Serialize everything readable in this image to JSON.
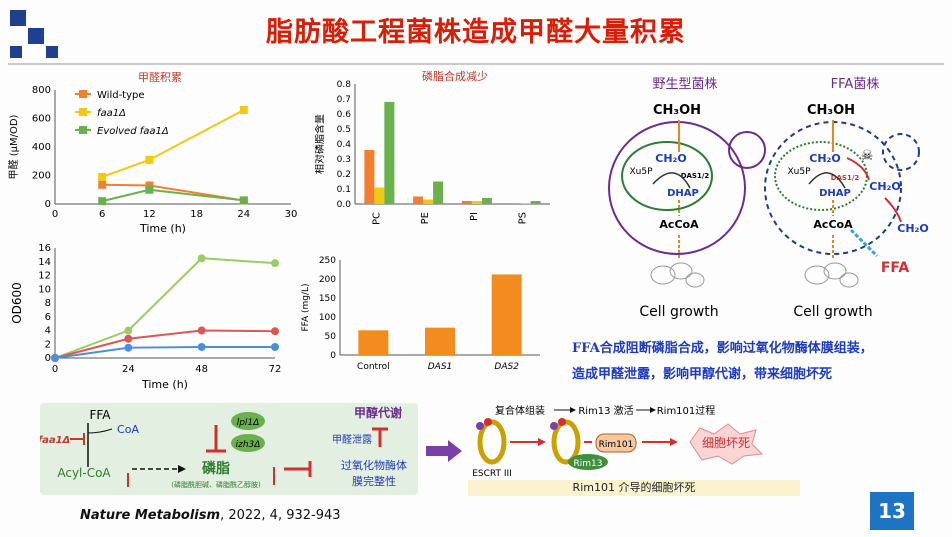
{
  "title": "脂肪酸工程菌株造成甲醛大量积累",
  "chart_formaldehyde": {
    "title": "甲醛积累",
    "type": "line",
    "ylabel": "甲醛 (μM/OD)",
    "xlabel": "Time (h)",
    "xlim": [
      0,
      30
    ],
    "ylim": [
      0,
      800
    ],
    "xticks": [
      "0",
      "6",
      "12",
      "18",
      "24",
      "30"
    ],
    "yticks": [
      "0",
      "200",
      "400",
      "600",
      "800"
    ],
    "series": [
      {
        "name": "Wild-type",
        "color": "#f08030",
        "x": [
          6,
          12,
          24
        ],
        "y": [
          135,
          130,
          25
        ]
      },
      {
        "name": "faa1Δ",
        "color": "#f2c811",
        "x": [
          6,
          12,
          24
        ],
        "y": [
          190,
          310,
          660
        ]
      },
      {
        "name": "Evolved faa1Δ",
        "color": "#6ab04c",
        "x": [
          6,
          12,
          24
        ],
        "y": [
          20,
          100,
          25
        ]
      }
    ]
  },
  "chart_phospholipid": {
    "title": "磷脂合成减少",
    "type": "bar",
    "ylabel": "相对磷脂含量",
    "categories": [
      "PC",
      "PE",
      "PI",
      "PS"
    ],
    "ylim": [
      0,
      0.8
    ],
    "yticks": [
      "0.0",
      "0.1",
      "0.2",
      "0.3",
      "0.4",
      "0.5",
      "0.6",
      "0.7",
      "0.8"
    ],
    "series": [
      {
        "name": "Wild-type",
        "color": "#f08030",
        "values": [
          0.36,
          0.05,
          0.02,
          0.005
        ]
      },
      {
        "name": "faa1Δ",
        "color": "#f2c811",
        "values": [
          0.11,
          0.03,
          0.02,
          0.005
        ]
      },
      {
        "name": "Evolved faa1Δ",
        "color": "#6ab04c",
        "values": [
          0.68,
          0.15,
          0.04,
          0.02
        ]
      }
    ]
  },
  "chart_od": {
    "type": "line",
    "ylabel": "OD600",
    "xlabel": "Time (h)",
    "xlim": [
      0,
      72
    ],
    "ylim": [
      0,
      16
    ],
    "xticks": [
      "0",
      "24",
      "48",
      "72"
    ],
    "yticks": [
      "0",
      "2",
      "4",
      "6",
      "8",
      "10",
      "12",
      "14",
      "16"
    ],
    "series": [
      {
        "name": "Wild-type",
        "color": "#9ccc65",
        "x": [
          0,
          24,
          48,
          72
        ],
        "y": [
          0,
          4,
          14.5,
          13.8
        ]
      },
      {
        "name": "faa1Δ",
        "color": "#e05555",
        "x": [
          0,
          24,
          48,
          72
        ],
        "y": [
          0,
          2.8,
          4,
          3.9
        ]
      },
      {
        "name": "Evolved faa1Δ",
        "color": "#4a90d9",
        "x": [
          0,
          24,
          48,
          72
        ],
        "y": [
          0,
          1.5,
          1.6,
          1.6
        ]
      }
    ]
  },
  "chart_ffa": {
    "type": "bar",
    "ylabel": "FFA (mg/L)",
    "categories": [
      "Control",
      "DAS1",
      "DAS2"
    ],
    "values": [
      65,
      72,
      212
    ],
    "color": "#f28c1e",
    "ylim": [
      0,
      250
    ],
    "yticks": [
      "0",
      "50",
      "100",
      "150",
      "200",
      "250"
    ]
  },
  "diagram": {
    "wt_title": "野生型菌株",
    "ffa_title": "FFA菌株",
    "methanol": "CH₃OH",
    "ch2o": "CH₂O",
    "xu5p": "Xu5P",
    "das": "DAS1/2",
    "dhap": "DHAP",
    "accoa": "AcCoA",
    "cell_growth": "Cell growth",
    "ffa": "FFA",
    "skull": "☠"
  },
  "summary": {
    "line1": "FFA合成阻断磷脂合成，影响过氧化物酶体膜组装，",
    "line2": "造成甲醛泄露，影响甲醇代谢，带来细胞坏死"
  },
  "pathway": {
    "ffa": "FFA",
    "faa1": "faa1Δ",
    "coa": "CoA",
    "acyl_coa": "Acyl-CoA",
    "lpl1": "lpl1Δ",
    "izh3": "izh3Δ",
    "phospholipid": "磷脂",
    "phospholipid_sub": "(磷脂酰胆碱、磷脂酰乙醇胺)",
    "methanol_met": "甲醇代谢",
    "leak": "甲醛泄露",
    "peroxisome1": "过氧化物酶体",
    "peroxisome2": "膜完整性"
  },
  "rim": {
    "step1": "复合体组装",
    "step2": "Rim13 激活",
    "step3": "Rim101过程",
    "escrt": "ESCRT III",
    "rim101": "Rim101",
    "rim13": "Rim13",
    "necrosis": "细胞坏死",
    "caption": "Rim101 介导的细胞坏死"
  },
  "citation": {
    "journal": "Nature Metabolism",
    "rest": ", 2022, 4, 932-943"
  },
  "page_number": "13"
}
